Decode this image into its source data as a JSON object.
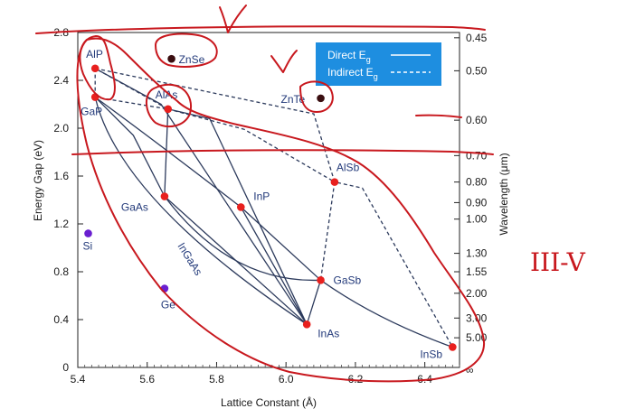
{
  "chart_data": {
    "type": "scatter",
    "xlabel": "Lattice Constant (Å)",
    "ylabel": "Energy Gap (eV)",
    "y2label": "Wavelength (μm)",
    "xlim": [
      5.4,
      6.5
    ],
    "ylim": [
      0,
      2.8
    ],
    "x_ticks": [
      "5.4",
      "5.6",
      "5.8",
      "6.0",
      "6.2",
      "6.4"
    ],
    "x_tick_values": [
      5.4,
      5.6,
      5.8,
      6.0,
      6.2,
      6.4
    ],
    "y_ticks": [
      "0",
      "0.4",
      "0.8",
      "1.2",
      "1.6",
      "2.0",
      "2.4",
      "2.8"
    ],
    "y_tick_values": [
      0,
      0.4,
      0.8,
      1.2,
      1.6,
      2.0,
      2.4,
      2.8
    ],
    "wavelength_ticks": [
      {
        "label": "0.45",
        "energy": 2.756
      },
      {
        "label": "0.50",
        "energy": 2.48
      },
      {
        "label": "0.60",
        "energy": 2.067
      },
      {
        "label": "0.70",
        "energy": 1.771
      },
      {
        "label": "0.80",
        "energy": 1.55
      },
      {
        "label": "0.90",
        "energy": 1.378
      },
      {
        "label": "1.00",
        "energy": 1.24
      },
      {
        "label": "1.30",
        "energy": 0.954
      },
      {
        "label": "1.55",
        "energy": 0.8
      },
      {
        "label": "2.00",
        "energy": 0.62
      },
      {
        "label": "3.00",
        "energy": 0.413
      },
      {
        "label": "5.00",
        "energy": 0.248
      },
      {
        "label": "∞",
        "energy": 0
      }
    ],
    "materials": [
      {
        "name": "AlP",
        "x": 5.45,
        "y": 2.5,
        "color": "#e8201e"
      },
      {
        "name": "GaP",
        "x": 5.45,
        "y": 2.26,
        "color": "#e8201e"
      },
      {
        "name": "AlAs",
        "x": 5.66,
        "y": 2.16,
        "color": "#e8201e"
      },
      {
        "name": "ZnSe",
        "x": 5.67,
        "y": 2.58,
        "color": "#3a0e10"
      },
      {
        "name": "ZnTe",
        "x": 6.1,
        "y": 2.25,
        "color": "#3a0e10"
      },
      {
        "name": "AlSb",
        "x": 6.14,
        "y": 1.55,
        "color": "#e8201e"
      },
      {
        "name": "GaAs",
        "x": 5.65,
        "y": 1.43,
        "color": "#e8201e"
      },
      {
        "name": "InP",
        "x": 5.87,
        "y": 1.34,
        "color": "#e8201e"
      },
      {
        "name": "GaSb",
        "x": 6.1,
        "y": 0.73,
        "color": "#e8201e"
      },
      {
        "name": "InAs",
        "x": 6.06,
        "y": 0.36,
        "color": "#e8201e"
      },
      {
        "name": "InSb",
        "x": 6.48,
        "y": 0.17,
        "color": "#e8201e"
      },
      {
        "name": "Si",
        "x": 5.43,
        "y": 1.12,
        "color": "#6a1fd0"
      },
      {
        "name": "Ge",
        "x": 5.65,
        "y": 0.66,
        "color": "#6a1fd0"
      }
    ],
    "curve_label": "InGaAs",
    "legend": {
      "direct": "Direct E",
      "indirect": "Indirect E",
      "subscript": "g",
      "placement": "top-right"
    },
    "annotations": {
      "handwritten": "III-V"
    },
    "grid": false
  }
}
